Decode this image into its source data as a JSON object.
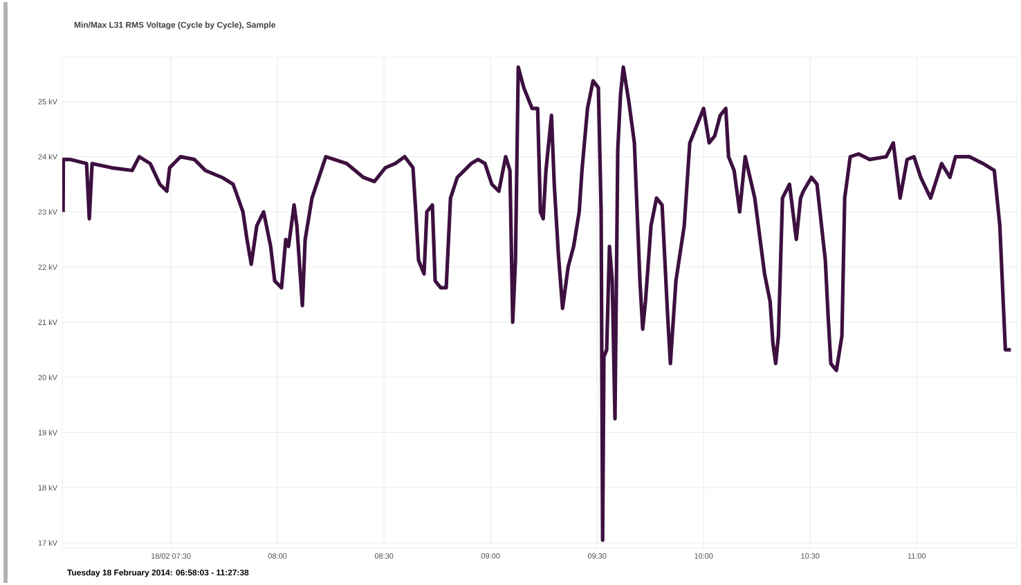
{
  "chart_data": {
    "type": "line",
    "title": "Min/Max L31 RMS Voltage (Cycle by Cycle), Sample",
    "annotations": [
      "Tuesday 18 February 2014: 06:58:03 - 11:27:38"
    ],
    "xlim": [
      6.99,
      11.47
    ],
    "xticks": [
      {
        "value": 7.5,
        "label": "18/02 07:30"
      },
      {
        "value": 8,
        "label": "08:00"
      },
      {
        "value": 8.5,
        "label": "08:30"
      },
      {
        "value": 9,
        "label": "09:00"
      },
      {
        "value": 9.5,
        "label": "09:30"
      },
      {
        "value": 10,
        "label": "10:00"
      },
      {
        "value": 10.5,
        "label": "10:30"
      },
      {
        "value": 11,
        "label": "11:00"
      }
    ],
    "ylim": [
      16.9,
      25.8
    ],
    "yticks": [
      {
        "value": 17,
        "label": "17 kV"
      },
      {
        "value": 18,
        "label": "18 kV"
      },
      {
        "value": 19,
        "label": "19 kV"
      },
      {
        "value": 20,
        "label": "20 kV"
      },
      {
        "value": 21,
        "label": "21 kV"
      },
      {
        "value": 22,
        "label": "22 kV"
      },
      {
        "value": 23,
        "label": "23 kV"
      },
      {
        "value": 24,
        "label": "24 kV"
      },
      {
        "value": 25,
        "label": "25 kV"
      }
    ],
    "grid": true,
    "marker": "none",
    "line_style": "solid",
    "series": [
      {
        "color": "#3d1040",
        "x": [
          6.994,
          6.995,
          7.026,
          7.104,
          7.117,
          7.13,
          7.221,
          7.318,
          7.351,
          7.403,
          7.448,
          7.481,
          7.494,
          7.545,
          7.61,
          7.662,
          7.74,
          7.792,
          7.838,
          7.857,
          7.877,
          7.903,
          7.935,
          7.968,
          7.987,
          8.019,
          8.039,
          8.052,
          8.078,
          8.091,
          8.117,
          8.13,
          8.162,
          8.227,
          8.325,
          8.403,
          8.455,
          8.506,
          8.552,
          8.597,
          8.636,
          8.649,
          8.662,
          8.688,
          8.701,
          8.727,
          8.74,
          8.766,
          8.792,
          8.812,
          8.844,
          8.909,
          8.942,
          8.974,
          9.006,
          9.039,
          9.071,
          9.091,
          9.104,
          9.117,
          9.13,
          9.156,
          9.195,
          9.221,
          9.234,
          9.247,
          9.26,
          9.286,
          9.299,
          9.318,
          9.338,
          9.364,
          9.39,
          9.416,
          9.429,
          9.455,
          9.481,
          9.506,
          9.519,
          9.526,
          9.532,
          9.545,
          9.558,
          9.571,
          9.584,
          9.597,
          9.61,
          9.623,
          9.649,
          9.675,
          9.701,
          9.714,
          9.727,
          9.753,
          9.779,
          9.805,
          9.831,
          9.844,
          9.87,
          9.909,
          9.935,
          9.961,
          10.0,
          10.026,
          10.052,
          10.078,
          10.104,
          10.117,
          10.143,
          10.169,
          10.195,
          10.24,
          10.286,
          10.312,
          10.325,
          10.338,
          10.351,
          10.37,
          10.403,
          10.435,
          10.455,
          10.468,
          10.506,
          10.532,
          10.571,
          10.584,
          10.597,
          10.623,
          10.649,
          10.662,
          10.688,
          10.727,
          10.779,
          10.857,
          10.89,
          10.922,
          10.955,
          10.987,
          11.019,
          11.065,
          11.117,
          11.156,
          11.182,
          11.247,
          11.312,
          11.364,
          11.39,
          11.416,
          11.442
        ],
        "values": [
          23.0,
          23.95,
          23.95,
          23.875,
          22.875,
          23.875,
          23.8,
          23.75,
          24.0,
          23.875,
          23.5,
          23.375,
          23.8,
          24.0,
          23.95,
          23.75,
          23.625,
          23.5,
          23.0,
          22.5,
          22.05,
          22.75,
          23.0,
          22.375,
          21.75,
          21.625,
          22.5,
          22.375,
          23.125,
          22.75,
          21.3,
          22.5,
          23.25,
          24.0,
          23.875,
          23.625,
          23.55,
          23.8,
          23.875,
          24.0,
          23.8,
          23.0,
          22.125,
          21.875,
          23.0,
          23.125,
          21.75,
          21.625,
          21.625,
          23.25,
          23.625,
          23.875,
          23.95,
          23.875,
          23.5,
          23.375,
          24.0,
          23.75,
          21.0,
          22.125,
          25.625,
          25.25,
          24.875,
          24.875,
          23.0,
          22.875,
          23.75,
          24.75,
          23.5,
          22.25,
          21.25,
          22.0,
          22.375,
          23.0,
          23.75,
          24.875,
          25.375,
          25.25,
          23.0,
          17.05,
          20.375,
          20.5,
          22.375,
          21.75,
          19.25,
          24.125,
          25.125,
          25.625,
          25.0,
          24.25,
          21.75,
          20.875,
          21.375,
          22.75,
          23.25,
          23.125,
          21.125,
          20.25,
          21.75,
          22.75,
          24.25,
          24.5,
          24.875,
          24.25,
          24.375,
          24.75,
          24.875,
          24.0,
          23.75,
          23.0,
          24.0,
          23.25,
          21.875,
          21.375,
          20.625,
          20.25,
          20.75,
          23.25,
          23.5,
          22.5,
          23.25,
          23.375,
          23.625,
          23.5,
          22.125,
          21.125,
          20.25,
          20.125,
          20.75,
          23.25,
          24.0,
          24.05,
          23.95,
          24.0,
          24.25,
          23.25,
          23.95,
          24.0,
          23.625,
          23.25,
          23.875,
          23.625,
          24.0,
          24.0,
          23.875,
          23.75,
          22.75,
          20.5,
          20.5
        ]
      }
    ]
  }
}
